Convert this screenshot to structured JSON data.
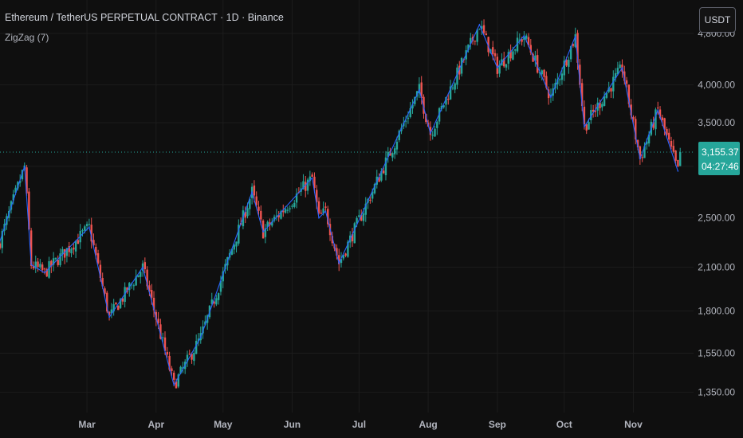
{
  "header": {
    "title": "Ethereum / TetherUS PERPETUAL CONTRACT · 1D · Binance",
    "indicator": "ZigZag (7)",
    "currency_button": "USDT"
  },
  "price_tag": {
    "price": "3,155.37",
    "countdown": "04:27:46"
  },
  "colors": {
    "background": "#0f0f0f",
    "up": "#26a69a",
    "down": "#ef5350",
    "zigzag": "#2962ff",
    "grid": "#1c1c1c",
    "axis_text": "#b2b5be"
  },
  "chart_data": {
    "type": "candlestick",
    "y_scale": "log",
    "ylim": [
      1250,
      5400
    ],
    "y_ticks": [
      {
        "value": 1350,
        "label": "1,350.00"
      },
      {
        "value": 1550,
        "label": "1,550.00"
      },
      {
        "value": 1800,
        "label": "1,800.00"
      },
      {
        "value": 2100,
        "label": "2,100.00"
      },
      {
        "value": 2500,
        "label": "2,500.00"
      },
      {
        "value": 3000,
        "label": ""
      },
      {
        "value": 3500,
        "label": "3,500.00"
      },
      {
        "value": 4000,
        "label": "4,000.00"
      },
      {
        "value": 4800,
        "label": "4,800.00"
      }
    ],
    "x_ticks": [
      {
        "date": "2025-03-01",
        "label": "Mar"
      },
      {
        "date": "2025-04-01",
        "label": "Apr"
      },
      {
        "date": "2025-05-01",
        "label": "May"
      },
      {
        "date": "2025-06-01",
        "label": "Jun"
      },
      {
        "date": "2025-07-01",
        "label": "Jul"
      },
      {
        "date": "2025-08-01",
        "label": "Aug"
      },
      {
        "date": "2025-09-01",
        "label": "Sep"
      },
      {
        "date": "2025-10-01",
        "label": "Oct"
      },
      {
        "date": "2025-11-01",
        "label": "Nov"
      }
    ],
    "x_range": [
      "2025-01-21",
      "2025-11-28"
    ],
    "last_price": 3155.37,
    "zigzag": [
      {
        "date": "2025-01-20",
        "price": 2250
      },
      {
        "date": "2025-02-01",
        "price": 3000
      },
      {
        "date": "2025-02-04",
        "price": 2120
      },
      {
        "date": "2025-02-10",
        "price": 2060
      },
      {
        "date": "2025-03-02",
        "price": 2420
      },
      {
        "date": "2025-03-11",
        "price": 1760
      },
      {
        "date": "2025-03-26",
        "price": 2100
      },
      {
        "date": "2025-04-09",
        "price": 1385
      },
      {
        "date": "2025-04-21",
        "price": 1640
      },
      {
        "date": "2025-05-14",
        "price": 2740
      },
      {
        "date": "2025-05-19",
        "price": 2380
      },
      {
        "date": "2025-06-10",
        "price": 2880
      },
      {
        "date": "2025-06-13",
        "price": 2500
      },
      {
        "date": "2025-06-16",
        "price": 2560
      },
      {
        "date": "2025-06-22",
        "price": 2130
      },
      {
        "date": "2025-07-28",
        "price": 3930
      },
      {
        "date": "2025-08-02",
        "price": 3370
      },
      {
        "date": "2025-08-24",
        "price": 4950
      },
      {
        "date": "2025-09-01",
        "price": 4250
      },
      {
        "date": "2025-09-13",
        "price": 4760
      },
      {
        "date": "2025-09-25",
        "price": 3830
      },
      {
        "date": "2025-10-06",
        "price": 4750
      },
      {
        "date": "2025-10-10",
        "price": 3450
      },
      {
        "date": "2025-10-27",
        "price": 4250
      },
      {
        "date": "2025-11-04",
        "price": 3080
      },
      {
        "date": "2025-11-12",
        "price": 3660
      },
      {
        "date": "2025-11-21",
        "price": 2950
      }
    ]
  }
}
